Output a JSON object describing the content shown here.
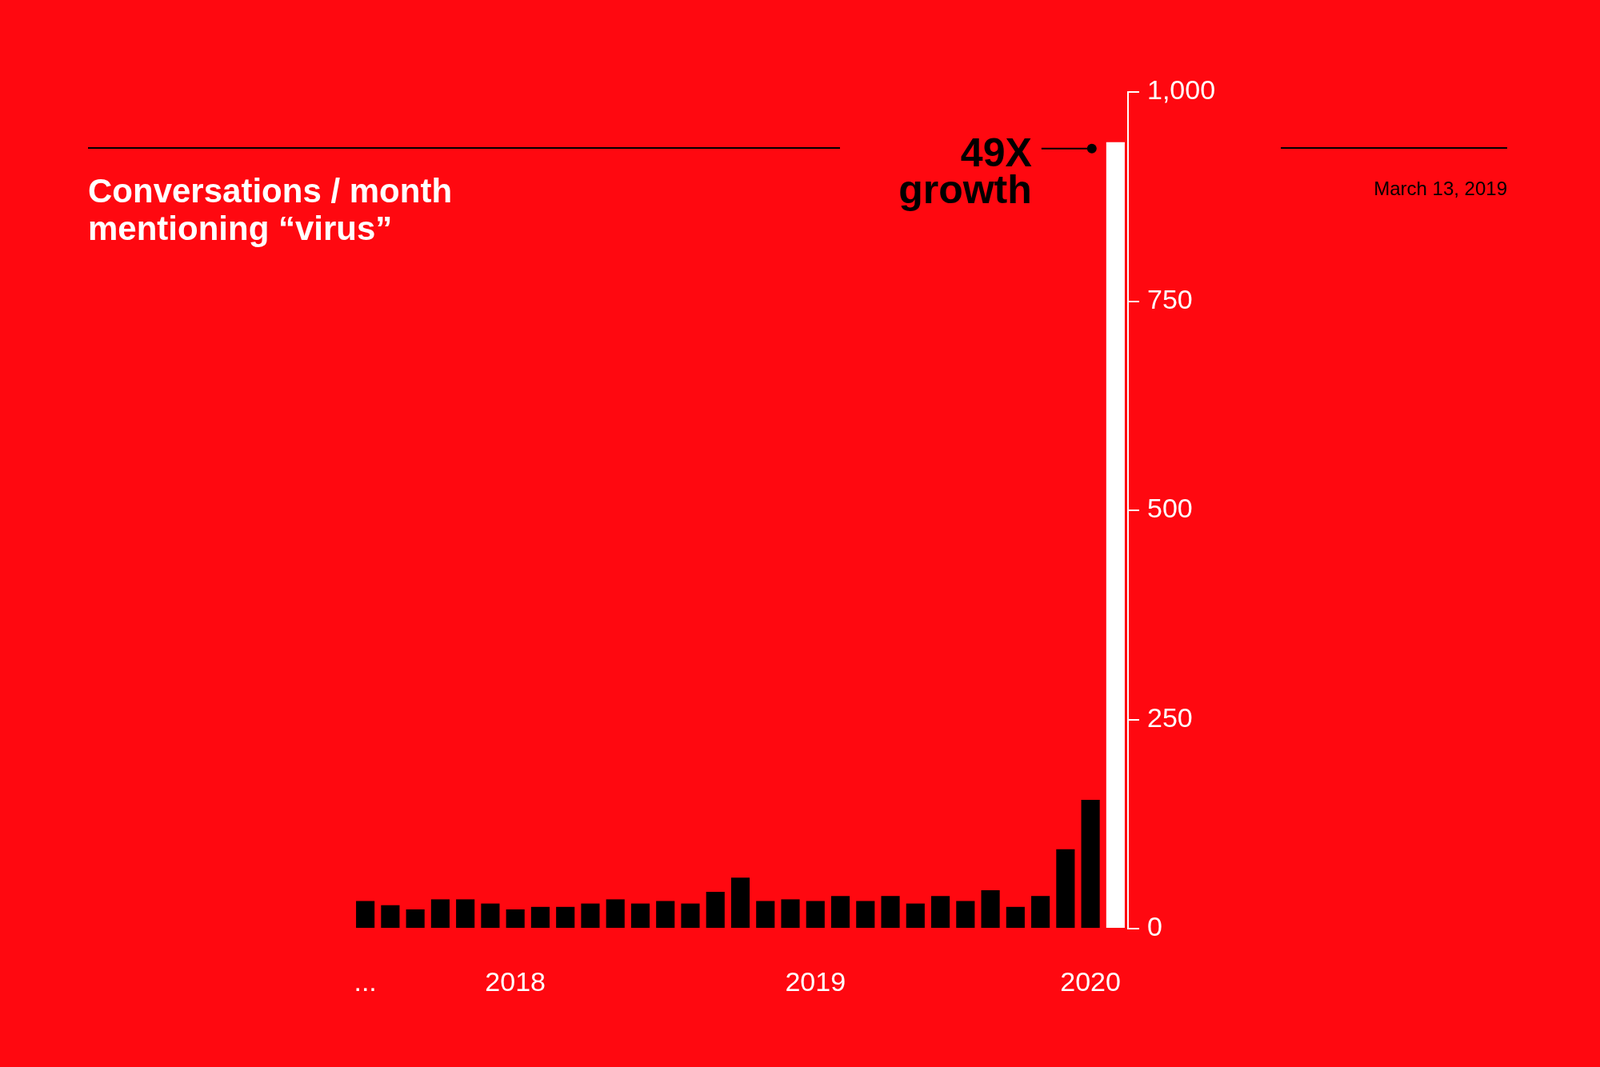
{
  "chart_data": {
    "type": "bar",
    "title": "Conversations / month\nmentioning “virus”",
    "subtitle": "March 13, 2019",
    "annotation": "49X\ngrowth",
    "categories": [
      "...",
      null,
      null,
      null,
      null,
      null,
      "2018",
      null,
      null,
      null,
      null,
      null,
      null,
      null,
      null,
      null,
      null,
      null,
      "2019",
      null,
      null,
      null,
      null,
      null,
      null,
      null,
      null,
      null,
      null,
      "2020",
      null
    ],
    "values": [
      33,
      28,
      23,
      35,
      35,
      30,
      23,
      26,
      26,
      30,
      35,
      30,
      33,
      30,
      44,
      61,
      33,
      35,
      33,
      39,
      33,
      39,
      30,
      39,
      33,
      46,
      26,
      39,
      95,
      154,
      940
    ],
    "colors": [
      "#000000",
      "#000000",
      "#000000",
      "#000000",
      "#000000",
      "#000000",
      "#000000",
      "#000000",
      "#000000",
      "#000000",
      "#000000",
      "#000000",
      "#000000",
      "#000000",
      "#000000",
      "#000000",
      "#000000",
      "#000000",
      "#000000",
      "#000000",
      "#000000",
      "#000000",
      "#000000",
      "#000000",
      "#000000",
      "#000000",
      "#000000",
      "#000000",
      "#000000",
      "#000000",
      "#ffffff"
    ],
    "ylim": [
      0,
      1000
    ],
    "yticks": [
      0,
      250,
      500,
      750,
      {
        "value": 1000,
        "label": "1,000"
      }
    ],
    "grid": false
  }
}
